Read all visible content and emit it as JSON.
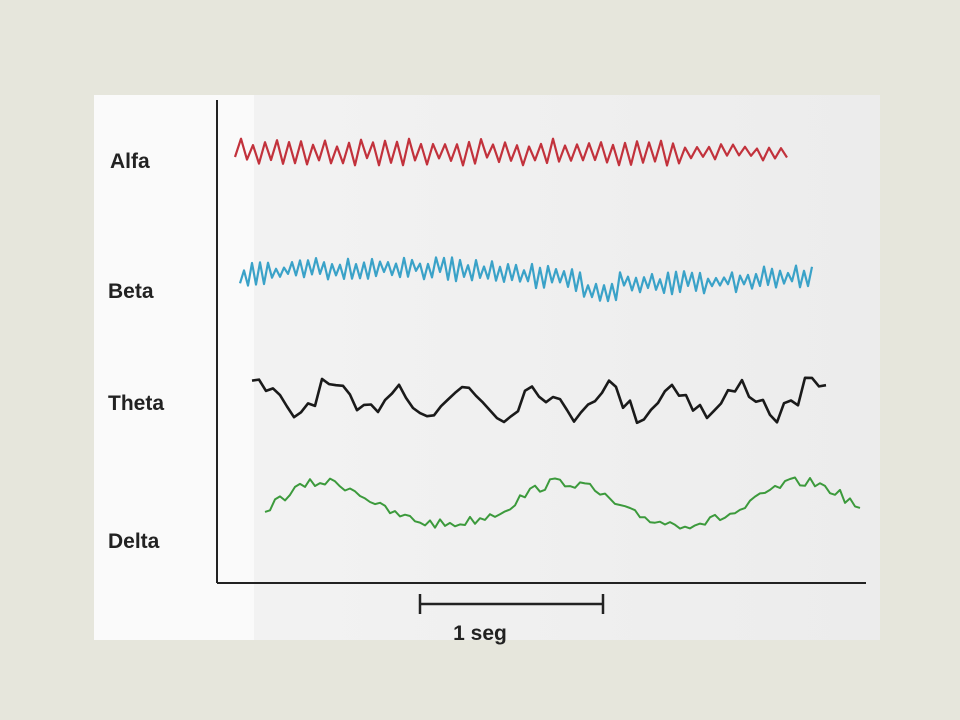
{
  "waves": [
    {
      "label": "Alfa"
    },
    {
      "label": "Beta"
    },
    {
      "label": "Theta"
    },
    {
      "label": "Delta"
    }
  ],
  "scale_bar": {
    "label": "1 seg"
  }
}
